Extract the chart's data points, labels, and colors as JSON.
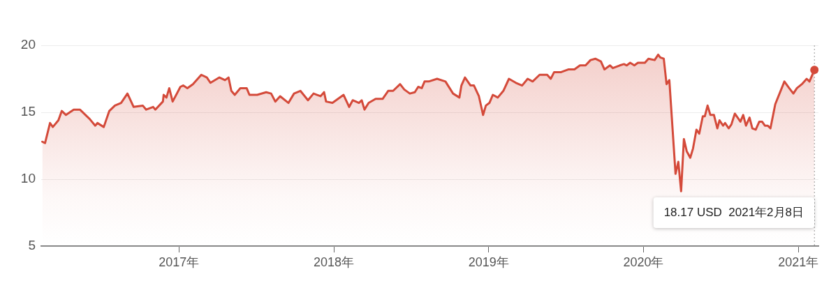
{
  "chart_data": {
    "type": "area",
    "x": [
      2016.117,
      2016.135,
      2016.167,
      2016.185,
      2016.221,
      2016.243,
      2016.27,
      2016.32,
      2016.36,
      2016.423,
      2016.459,
      2016.473,
      2016.514,
      2016.55,
      2016.586,
      2016.626,
      2016.667,
      2016.707,
      2016.766,
      2016.788,
      2016.833,
      2016.847,
      2016.896,
      2016.901,
      2016.919,
      2016.937,
      2016.959,
      2017.009,
      2017.027,
      2017.054,
      2017.09,
      2017.144,
      2017.18,
      2017.203,
      2017.261,
      2017.297,
      2017.32,
      2017.338,
      2017.36,
      2017.396,
      2017.437,
      2017.455,
      2017.505,
      2017.563,
      2017.595,
      2017.622,
      2017.653,
      2017.707,
      2017.743,
      2017.784,
      2017.833,
      2017.869,
      2017.892,
      2017.914,
      2017.937,
      2017.95,
      2017.991,
      2018.027,
      2018.063,
      2018.099,
      2018.122,
      2018.162,
      2018.18,
      2018.198,
      2018.225,
      2018.27,
      2018.315,
      2018.351,
      2018.383,
      2018.428,
      2018.455,
      2018.491,
      2018.523,
      2018.545,
      2018.568,
      2018.586,
      2018.613,
      2018.667,
      2018.721,
      2018.77,
      2018.811,
      2018.824,
      2018.847,
      2018.883,
      2018.905,
      2018.937,
      2018.964,
      2018.982,
      2019.005,
      2019.027,
      2019.059,
      2019.095,
      2019.131,
      2019.176,
      2019.216,
      2019.252,
      2019.284,
      2019.329,
      2019.365,
      2019.378,
      2019.401,
      2019.423,
      2019.468,
      2019.514,
      2019.554,
      2019.59,
      2019.626,
      2019.658,
      2019.689,
      2019.725,
      2019.748,
      2019.784,
      2019.802,
      2019.847,
      2019.874,
      2019.892,
      2019.914,
      2019.941,
      2019.964,
      2020.009,
      2020.032,
      2020.072,
      2020.095,
      2020.108,
      2020.131,
      2020.149,
      2020.167,
      2020.207,
      2020.225,
      2020.243,
      2020.261,
      2020.279,
      2020.302,
      2020.32,
      2020.342,
      2020.36,
      2020.383,
      2020.396,
      2020.414,
      2020.432,
      2020.455,
      2020.477,
      2020.491,
      2020.514,
      2020.527,
      2020.55,
      2020.568,
      2020.59,
      2020.626,
      2020.644,
      2020.662,
      2020.685,
      2020.703,
      2020.725,
      2020.748,
      2020.766,
      2020.784,
      2020.802,
      2020.82,
      2020.851,
      2020.91,
      2020.941,
      2020.968,
      2020.991,
      2021.023,
      2021.054,
      2021.072,
      2021.104
    ],
    "series": [
      {
        "color": "#d44a3a",
        "values": [
          12.8,
          12.7,
          14.2,
          13.9,
          14.4,
          15.1,
          14.8,
          15.2,
          15.2,
          14.5,
          14.0,
          14.2,
          13.9,
          15.1,
          15.5,
          15.7,
          16.4,
          15.4,
          15.5,
          15.2,
          15.4,
          15.2,
          15.8,
          16.3,
          16.1,
          16.8,
          15.8,
          16.9,
          17.0,
          16.8,
          17.1,
          17.8,
          17.6,
          17.2,
          17.6,
          17.4,
          17.6,
          16.6,
          16.3,
          16.8,
          16.8,
          16.3,
          16.3,
          16.5,
          16.4,
          15.8,
          16.2,
          15.7,
          16.4,
          16.6,
          15.9,
          16.4,
          16.3,
          16.2,
          16.5,
          15.8,
          15.7,
          16.0,
          16.3,
          15.4,
          15.9,
          15.7,
          15.9,
          15.2,
          15.7,
          16.0,
          16.0,
          16.6,
          16.6,
          17.1,
          16.7,
          16.4,
          16.5,
          16.9,
          16.8,
          17.3,
          17.3,
          17.5,
          17.3,
          16.4,
          16.1,
          17.0,
          17.6,
          17.0,
          17.0,
          16.2,
          14.8,
          15.5,
          15.7,
          16.3,
          16.1,
          16.6,
          17.5,
          17.2,
          17.0,
          17.5,
          17.3,
          17.8,
          17.8,
          17.8,
          17.5,
          18.0,
          18.0,
          18.2,
          18.2,
          18.5,
          18.5,
          18.9,
          19.0,
          18.8,
          18.2,
          18.5,
          18.3,
          18.5,
          18.6,
          18.5,
          18.7,
          18.5,
          18.7,
          18.7,
          19.0,
          18.9,
          19.3,
          19.1,
          19.0,
          17.1,
          17.4,
          10.4,
          11.3,
          9.1,
          13.0,
          12.1,
          11.6,
          12.3,
          13.7,
          13.4,
          14.7,
          14.7,
          15.5,
          14.8,
          14.8,
          13.8,
          14.4,
          14.0,
          14.2,
          13.8,
          14.1,
          14.9,
          14.3,
          14.8,
          14.0,
          14.6,
          13.8,
          13.7,
          14.3,
          14.3,
          14.0,
          14.0,
          13.8,
          15.6,
          17.3,
          16.8,
          16.4,
          16.8,
          17.1,
          17.5,
          17.3,
          18.17
        ]
      }
    ],
    "xlim": [
      2016.11,
      2021.13
    ],
    "xticks": [
      {
        "value": 2017,
        "label": "2017年"
      },
      {
        "value": 2018,
        "label": "2018年"
      },
      {
        "value": 2019,
        "label": "2019年"
      },
      {
        "value": 2020,
        "label": "2020年"
      },
      {
        "value": 2021,
        "label": "2021年"
      }
    ],
    "ylim": [
      5,
      20
    ],
    "yticks": [
      5,
      10,
      15,
      20
    ],
    "grid": "y",
    "marker": "none",
    "ref_lines": [
      {
        "axis": "x",
        "value": 2021.104,
        "color": "#999999",
        "line_style": "dotted"
      }
    ],
    "annotations": [
      "18.17 USD  2021年2月8日"
    ]
  }
}
